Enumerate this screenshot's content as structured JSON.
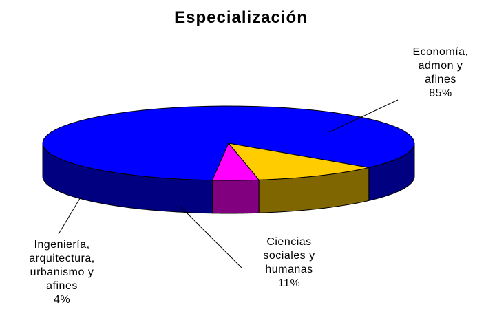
{
  "chart_data": {
    "type": "pie3d",
    "title": "Especialización",
    "categories": [
      "Economía,\nadmon y\nafines",
      "Ciencias\nsociales y\nhumanas",
      "Ingeniería,\narquitectura,\nurbanismo y\nafines"
    ],
    "values": [
      85,
      11,
      4
    ],
    "value_labels": [
      "85%",
      "11%",
      "4%"
    ],
    "colors": [
      "#0000ff",
      "#ffcc00",
      "#ff00ff"
    ]
  }
}
